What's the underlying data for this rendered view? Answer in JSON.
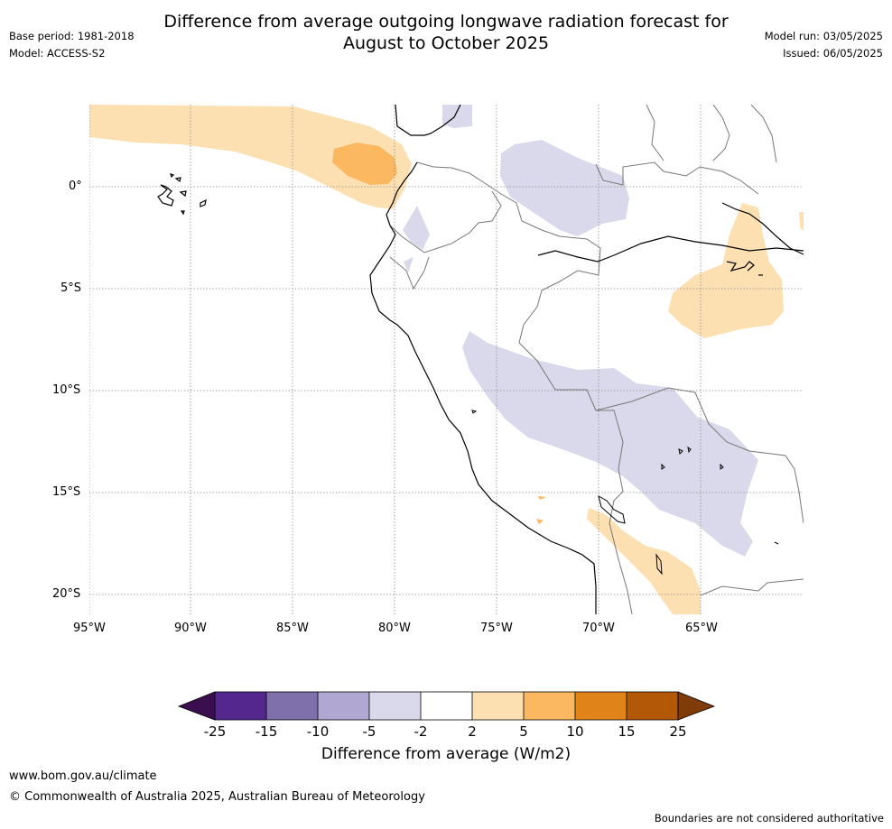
{
  "title_line1": "Difference from average outgoing longwave radiation forecast for",
  "title_line2": "August to October 2025",
  "base_period": "Base period: 1981-2018",
  "model": "Model: ACCESS-S2",
  "model_run": "Model run: 03/05/2025",
  "issued": "Issued: 06/05/2025",
  "lon_labels": [
    "95°W",
    "90°W",
    "85°W",
    "80°W",
    "75°W",
    "70°W",
    "65°W"
  ],
  "lat_labels": [
    "0°",
    "5°S",
    "10°S",
    "15°S",
    "20°S"
  ],
  "colorbar": {
    "ticks": [
      "-25",
      "-15",
      "-10",
      "-5",
      "-2",
      "2",
      "5",
      "10",
      "15",
      "25"
    ],
    "colors": [
      "#3b0f4f",
      "#54278f",
      "#7f6fab",
      "#b0a8d2",
      "#d9d9eb",
      "#ffffff",
      "#fde0b2",
      "#fbb861",
      "#e08419",
      "#b35806",
      "#7f3b08"
    ],
    "label": "Difference from average (W/m2)"
  },
  "footer_url": "www.bom.gov.au/climate",
  "footer_copyright": "© Commonwealth of Australia 2025, Australian Bureau of Meteorology",
  "footer_disclaimer": "Boundaries are not considered authoritative"
}
